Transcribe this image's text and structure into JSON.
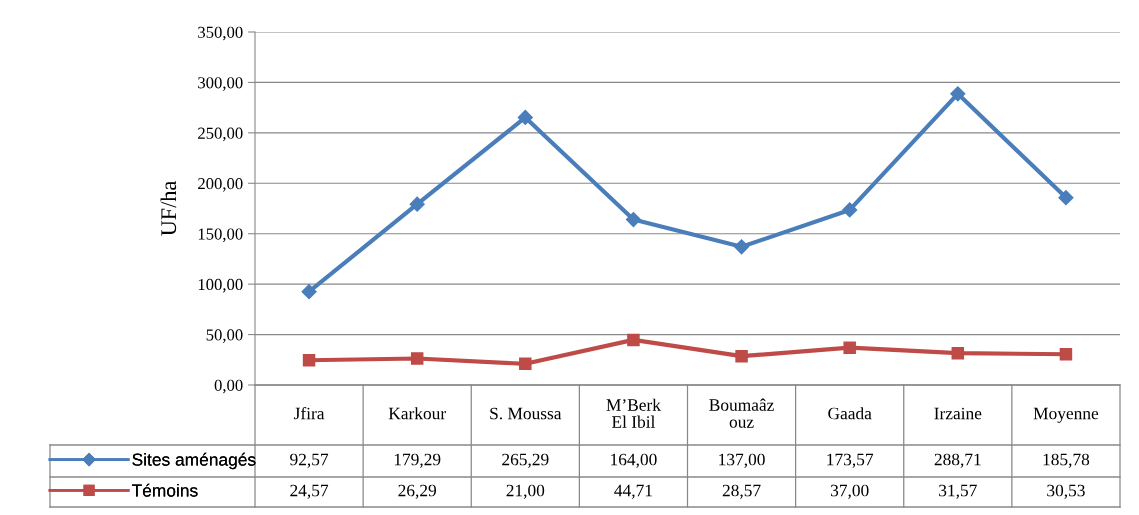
{
  "chart_data": {
    "type": "line",
    "ylabel": "UF/ha",
    "categories": [
      "Jfira",
      "Karkour",
      "S. Moussa",
      "M’Berk\nEl Ibil",
      "Boumaâz\nouz",
      "Gaada",
      "Irzaine",
      "Moyenne"
    ],
    "series": [
      {
        "name": "Sites aménagés",
        "color": "#4a7ebb",
        "marker": "diamond",
        "values": [
          92.57,
          179.29,
          265.29,
          164.0,
          137.0,
          173.57,
          288.71,
          185.78
        ],
        "value_labels": [
          "92,57",
          "179,29",
          "265,29",
          "164,00",
          "137,00",
          "173,57",
          "288,71",
          "185,78"
        ]
      },
      {
        "name": "Témoins",
        "color": "#be4b48",
        "marker": "square",
        "values": [
          24.57,
          26.29,
          21.0,
          44.71,
          28.57,
          37.0,
          31.57,
          30.53
        ],
        "value_labels": [
          "24,57",
          "26,29",
          "21,00",
          "44,71",
          "28,57",
          "37,00",
          "31,57",
          "30,53"
        ]
      }
    ],
    "ylim": [
      0,
      350
    ],
    "yticks": [
      {
        "value": 0,
        "label": "0,00"
      },
      {
        "value": 50,
        "label": "50,00"
      },
      {
        "value": 100,
        "label": "100,00"
      },
      {
        "value": 150,
        "label": "150,00"
      },
      {
        "value": 200,
        "label": "200,00"
      },
      {
        "value": 250,
        "label": "250,00"
      },
      {
        "value": 300,
        "label": "300,00"
      },
      {
        "value": 350,
        "label": "350,00"
      }
    ],
    "grid": "y",
    "legend": "bottom",
    "data_labels": true
  }
}
